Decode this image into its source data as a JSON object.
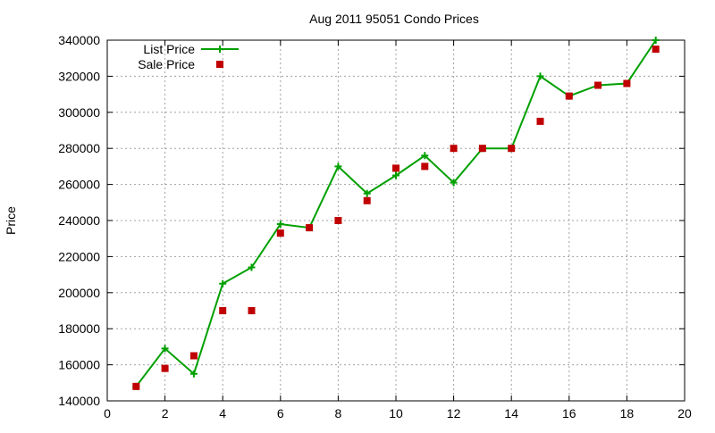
{
  "chart_data": {
    "type": "line",
    "title": "Aug 2011 95051 Condo Prices",
    "xlabel": "",
    "ylabel": "Price",
    "xlim": [
      0,
      20
    ],
    "ylim": [
      140000,
      340000
    ],
    "xticks": [
      0,
      2,
      4,
      6,
      8,
      10,
      12,
      14,
      16,
      18,
      20
    ],
    "yticks": [
      140000,
      160000,
      180000,
      200000,
      220000,
      240000,
      260000,
      280000,
      300000,
      320000,
      340000
    ],
    "grid": true,
    "legend_position": "top-left",
    "series": [
      {
        "name": "List Price",
        "style": "line-plus",
        "color": "#00a000",
        "x": [
          1,
          2,
          3,
          4,
          5,
          6,
          7,
          8,
          9,
          10,
          11,
          12,
          13,
          14,
          15,
          16,
          17,
          18,
          19
        ],
        "y": [
          148000,
          169000,
          155000,
          205000,
          214000,
          238000,
          236000,
          270000,
          255000,
          265000,
          276000,
          261000,
          280000,
          280000,
          320000,
          309000,
          315000,
          316000,
          340000
        ]
      },
      {
        "name": "Sale Price",
        "style": "square-points",
        "color": "#c00000",
        "x": [
          1,
          2,
          3,
          4,
          5,
          6,
          7,
          8,
          9,
          10,
          11,
          12,
          13,
          14,
          15,
          16,
          17,
          18,
          19
        ],
        "y": [
          148000,
          158000,
          165000,
          190000,
          190000,
          233000,
          236000,
          240000,
          251000,
          269000,
          270000,
          280000,
          280000,
          280000,
          295000,
          309000,
          315000,
          316000,
          335000
        ]
      }
    ]
  }
}
